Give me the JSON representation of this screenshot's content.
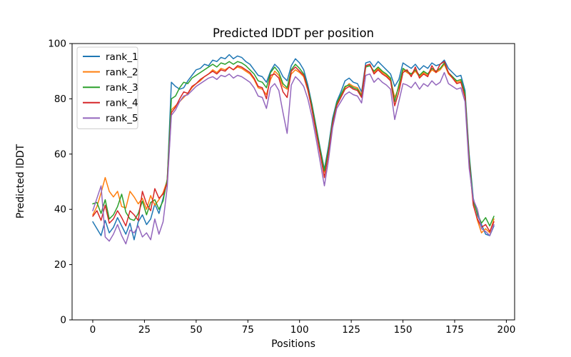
{
  "figure": {
    "title": "Predicted lDDT per position",
    "xlabel": "Positions",
    "ylabel": "Predicted lDDT",
    "background": "#ffffff",
    "spine_color": "#000000"
  },
  "chart_data": {
    "type": "line",
    "title": "Predicted lDDT per position",
    "xlabel": "Positions",
    "ylabel": "Predicted lDDT",
    "xlim": [
      -10,
      204
    ],
    "ylim": [
      0,
      100
    ],
    "x_ticks": [
      0,
      25,
      50,
      75,
      100,
      125,
      150,
      175,
      200
    ],
    "y_ticks": [
      0,
      20,
      40,
      60,
      80,
      100
    ],
    "grid": false,
    "legend_position": "upper left",
    "line_width": 1.5,
    "x": [
      0,
      2,
      4,
      6,
      8,
      10,
      12,
      14,
      16,
      18,
      20,
      22,
      24,
      26,
      28,
      30,
      32,
      34,
      36,
      38,
      40,
      42,
      44,
      46,
      48,
      50,
      52,
      54,
      56,
      58,
      60,
      62,
      64,
      66,
      68,
      70,
      72,
      74,
      76,
      78,
      80,
      82,
      84,
      86,
      88,
      90,
      92,
      94,
      96,
      98,
      100,
      102,
      104,
      106,
      108,
      110,
      112,
      114,
      116,
      118,
      120,
      122,
      124,
      126,
      128,
      130,
      132,
      134,
      136,
      138,
      140,
      142,
      144,
      146,
      148,
      150,
      152,
      154,
      156,
      158,
      160,
      162,
      164,
      166,
      168,
      170,
      172,
      174,
      176,
      178,
      180,
      182,
      184,
      186,
      188,
      190,
      192,
      194
    ],
    "series": [
      {
        "name": "rank_1",
        "color": "#1f77b4",
        "values": [
          35.5,
          33,
          30.5,
          36,
          31.5,
          33.5,
          37,
          34,
          31,
          35,
          29,
          35.5,
          38,
          34.5,
          36.5,
          42,
          38.5,
          44,
          50,
          86,
          84.5,
          83.5,
          84,
          86.5,
          88.5,
          90.5,
          91,
          92.5,
          92,
          94,
          93.5,
          95,
          94.5,
          96,
          94.5,
          95.5,
          95,
          93.5,
          92.5,
          90.5,
          88.5,
          88,
          86,
          90,
          92.5,
          91,
          88,
          86.5,
          92,
          94.5,
          93,
          90.5,
          85,
          78,
          70,
          62,
          54.5,
          63,
          73,
          79,
          82.5,
          86.5,
          87.5,
          86,
          85.5,
          82.5,
          93,
          93.5,
          91.5,
          93.5,
          92,
          90.5,
          89,
          84.5,
          87,
          93,
          92,
          91,
          92.5,
          90.5,
          92,
          91,
          93,
          92,
          92.5,
          94,
          91,
          89.5,
          88,
          88.5,
          83,
          60,
          44,
          38,
          34.5,
          31,
          30.5,
          34
        ]
      },
      {
        "name": "rank_2",
        "color": "#ff7f0e",
        "values": [
          38,
          41,
          46,
          51.5,
          46.5,
          44.5,
          46.5,
          41,
          40.5,
          46.5,
          44.5,
          42,
          44,
          40,
          45,
          41.5,
          43.5,
          46,
          50.5,
          76,
          77.5,
          79,
          80.5,
          82,
          84,
          85.5,
          86.5,
          88,
          89,
          90.5,
          89.5,
          91,
          90.5,
          91.5,
          90.5,
          91.5,
          91,
          90,
          89,
          87,
          84,
          83.5,
          81.5,
          87,
          90,
          88.5,
          84.5,
          83.5,
          89,
          90.5,
          89.5,
          88,
          83,
          76.5,
          69,
          61,
          53.5,
          61,
          71.5,
          78,
          81,
          84,
          85.5,
          84.5,
          84,
          81.5,
          92,
          92.5,
          89.5,
          91,
          89.5,
          88.5,
          87,
          80.5,
          84,
          90.5,
          89.5,
          88.5,
          90,
          88,
          89.5,
          88.5,
          90.5,
          89.5,
          90.5,
          92.5,
          89,
          87.5,
          86,
          86.5,
          81,
          58,
          42,
          36,
          31.5,
          33,
          31.5,
          36.5
        ]
      },
      {
        "name": "rank_3",
        "color": "#2ca02c",
        "values": [
          42,
          42.5,
          38.5,
          43.5,
          36.5,
          38,
          41,
          45.5,
          39,
          36.5,
          36,
          38.5,
          43,
          38,
          42.5,
          43.5,
          40,
          43,
          51,
          80,
          81,
          84,
          86,
          85.5,
          87.5,
          88.5,
          89.5,
          90.5,
          91.5,
          92.5,
          91.5,
          93,
          92.5,
          93.5,
          92.5,
          93.5,
          93,
          92,
          90.5,
          89,
          86.5,
          86,
          84,
          89.5,
          91.5,
          89.5,
          85.5,
          84,
          90.5,
          92.5,
          91,
          89,
          84,
          77.5,
          69.5,
          61.5,
          54,
          62,
          72,
          78.5,
          81.5,
          84.5,
          85,
          84,
          83.5,
          81,
          91.5,
          92,
          90,
          91.5,
          90,
          89,
          87.5,
          79,
          85,
          91,
          90,
          89,
          90.5,
          88.5,
          90,
          89,
          91,
          90,
          91,
          93,
          89.5,
          88,
          86.5,
          87,
          82,
          59,
          43,
          38.5,
          35,
          37,
          34,
          37.5
        ]
      },
      {
        "name": "rank_4",
        "color": "#d62728",
        "values": [
          37.5,
          39.5,
          36,
          41.5,
          35,
          36.5,
          39.5,
          37,
          34,
          39.5,
          38,
          36,
          46.5,
          42,
          39.5,
          47.5,
          44,
          45.5,
          49.5,
          75,
          77,
          80,
          82.5,
          82,
          84.5,
          85.5,
          87,
          88,
          89,
          90,
          89,
          90.5,
          90,
          91.5,
          90.5,
          92,
          91.5,
          90.5,
          89.5,
          87.5,
          84.5,
          84,
          80,
          88.5,
          89,
          87.5,
          82.5,
          80.5,
          90,
          91.5,
          90,
          88.5,
          83.5,
          76,
          68,
          60,
          51.5,
          60.5,
          71,
          77.5,
          80.5,
          83.5,
          84.5,
          83.5,
          83,
          80.5,
          92,
          92.5,
          89,
          90.5,
          89,
          88,
          86.5,
          77.5,
          82.5,
          89.5,
          90.5,
          88,
          91.5,
          87.5,
          89,
          88,
          92,
          89.5,
          92.5,
          93.5,
          89.5,
          87.5,
          85.5,
          86,
          80.5,
          57,
          41.5,
          36.5,
          33.5,
          34.5,
          32,
          35.5
        ]
      },
      {
        "name": "rank_5",
        "color": "#9467bd",
        "values": [
          39.5,
          44,
          48.5,
          30,
          28.5,
          31,
          34.5,
          30.5,
          27.5,
          32.5,
          31.5,
          34,
          30,
          31.5,
          29,
          36.5,
          31,
          35.5,
          48,
          74,
          76,
          79,
          81,
          81.5,
          83,
          84.5,
          85.5,
          86.5,
          87.5,
          88,
          87,
          88.5,
          88,
          89,
          87.5,
          88.5,
          88,
          87,
          86,
          84,
          81,
          80.5,
          76.5,
          84,
          85.5,
          83,
          75,
          67.5,
          85,
          88,
          86.5,
          84.5,
          80,
          73.5,
          65.5,
          57,
          48.5,
          58,
          69.5,
          76.5,
          79,
          81.5,
          82.5,
          81.5,
          81,
          78.5,
          88.5,
          89,
          86,
          87.5,
          86,
          85,
          83.5,
          72.5,
          79,
          85.5,
          85,
          84,
          86,
          83.5,
          85.5,
          84.5,
          86.5,
          85,
          86,
          89.5,
          85.5,
          84.5,
          83.5,
          84,
          79,
          55,
          43.5,
          40,
          33,
          32,
          30.5,
          34.5
        ]
      }
    ]
  }
}
